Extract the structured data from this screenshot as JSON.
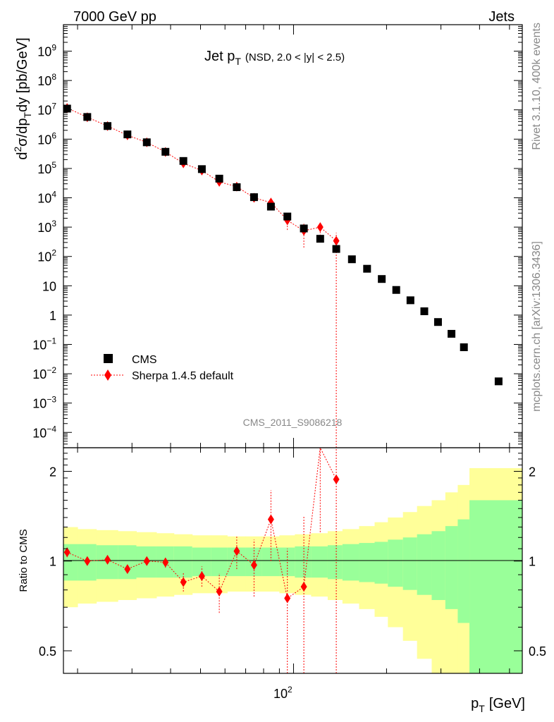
{
  "header": {
    "left": "7000 GeV pp",
    "right": "Jets"
  },
  "side_labels": {
    "rivet": "Rivet 3.1.10,  400k events",
    "mcplots": "mcplots.cern.ch [arXiv:1306.3436]"
  },
  "watermark": "CMS_2011_S9086218",
  "colors": {
    "data": "#000000",
    "mc": "#ff0000",
    "band_inner": "#99ff99",
    "band_outer": "#ffff99"
  },
  "chart_data": [
    {
      "type": "scatter",
      "title": "Jet p_T (NSD, 2.0 < |y| < 2.5)",
      "title_parts": {
        "main": "Jet p",
        "sub": "T",
        "paren": "(NSD, 2.0 < |y| < 2.5)"
      },
      "ylabel": "d²σ/dp_T dy [pb/GeV]",
      "xscale": "log",
      "yscale": "log",
      "xlim": [
        18,
        550
      ],
      "ylim": [
        3e-05,
        8000000000
      ],
      "ytick_labels": [
        {
          "v": 1000000000.0,
          "base": "10",
          "exp": "9"
        },
        {
          "v": 100000000.0,
          "base": "10",
          "exp": "8"
        },
        {
          "v": 10000000.0,
          "base": "10",
          "exp": "7"
        },
        {
          "v": 1000000.0,
          "base": "10",
          "exp": "6"
        },
        {
          "v": 100000.0,
          "base": "10",
          "exp": "5"
        },
        {
          "v": 10000.0,
          "base": "10",
          "exp": "4"
        },
        {
          "v": 1000.0,
          "base": "10",
          "exp": "3"
        },
        {
          "v": 100.0,
          "base": "10",
          "exp": "2"
        },
        {
          "v": 10,
          "base": "10",
          "exp": ""
        },
        {
          "v": 1,
          "base": "1",
          "exp": ""
        },
        {
          "v": 0.1,
          "base": "10",
          "exp": "−1"
        },
        {
          "v": 0.01,
          "base": "10",
          "exp": "−2"
        },
        {
          "v": 0.001,
          "base": "10",
          "exp": "−3"
        },
        {
          "v": 0.0001,
          "base": "10",
          "exp": "−4"
        }
      ],
      "legend_position": "lower-left",
      "series": [
        {
          "name": "CMS",
          "marker": "square",
          "x": [
            18.5,
            21.5,
            25,
            29,
            33.5,
            38.5,
            44,
            50.5,
            57.5,
            65.5,
            74.5,
            84.5,
            95.5,
            108,
            122,
            137.5,
            154.5,
            173,
            193,
            215,
            239,
            265,
            293.5,
            324.5,
            356,
            461
          ],
          "y": [
            11000000,
            5700000,
            2800000,
            1450000,
            780000,
            370000,
            180000,
            95000,
            45000,
            23000,
            10500,
            5000,
            2300,
            900,
            400,
            180,
            80,
            38,
            17,
            7.2,
            3.2,
            1.35,
            0.58,
            0.23,
            0.08,
            0.0055
          ]
        },
        {
          "name": "Sherpa 1.4.5 default",
          "marker": "diamond",
          "x": [
            18.5,
            21.5,
            25,
            29,
            33.5,
            38.5,
            44,
            50.5,
            57.5,
            65.5,
            74.5,
            84.5,
            95.5,
            108,
            122,
            137.5
          ],
          "y": [
            11500000,
            5600000,
            2800000,
            1350000,
            780000,
            365000,
            150000,
            85000,
            35000,
            24000,
            10000,
            6900,
            1700,
            750,
            1000,
            340
          ],
          "yerr_low": [
            500000,
            200000,
            100000,
            60000,
            30000,
            20000,
            20000,
            10000,
            6000,
            5000,
            2000,
            2500,
            900,
            550,
            500,
            340
          ],
          "yerr_high": [
            500000,
            200000,
            100000,
            60000,
            30000,
            20000,
            20000,
            10000,
            6000,
            5000,
            2000,
            2500,
            900,
            550,
            500,
            300
          ]
        }
      ]
    },
    {
      "type": "scatter",
      "title": "",
      "xlabel": "p_T [GeV]",
      "xlabel_parts": {
        "main": "p",
        "sub": "T",
        "unit": "[GeV]"
      },
      "ylabel": "Ratio to CMS",
      "xscale": "log",
      "yscale": "log",
      "xlim": [
        18,
        550
      ],
      "ylim": [
        0.42,
        2.4
      ],
      "ytick_labels": [
        {
          "v": 2,
          "label": "2"
        },
        {
          "v": 1,
          "label": "1"
        },
        {
          "v": 0.5,
          "label": "0.5"
        }
      ],
      "xtick_labels": [
        {
          "v": 100,
          "base": "10",
          "exp": "2"
        }
      ],
      "reference_line": 1,
      "bands": {
        "x_edges": [
          18,
          20,
          23,
          27,
          31,
          36,
          41,
          47,
          54,
          61,
          70,
          79,
          90,
          101,
          114,
          129,
          144,
          163,
          183,
          202,
          226,
          251,
          280,
          310,
          340,
          371,
          550
        ],
        "inner_half_width": [
          0.14,
          0.14,
          0.13,
          0.13,
          0.12,
          0.12,
          0.12,
          0.11,
          0.11,
          0.11,
          0.11,
          0.11,
          0.11,
          0.12,
          0.12,
          0.13,
          0.14,
          0.15,
          0.16,
          0.18,
          0.2,
          0.23,
          0.26,
          0.31,
          0.38,
          0.6
        ],
        "outer_half_width": [
          0.3,
          0.28,
          0.27,
          0.26,
          0.25,
          0.24,
          0.23,
          0.22,
          0.22,
          0.21,
          0.21,
          0.21,
          0.22,
          0.23,
          0.24,
          0.26,
          0.28,
          0.31,
          0.35,
          0.4,
          0.46,
          0.53,
          0.6,
          0.7,
          0.8,
          1.05
        ]
      },
      "series": [
        {
          "name": "Sherpa 1.4.5 default",
          "marker": "diamond",
          "x": [
            18.5,
            21.5,
            25,
            29,
            33.5,
            38.5,
            44,
            50.5,
            57.5,
            65.5,
            74.5,
            84.5,
            95.5,
            108,
            122,
            137.5
          ],
          "y": [
            1.07,
            1.0,
            1.01,
            0.94,
            1.0,
            0.99,
            0.85,
            0.89,
            0.79,
            1.08,
            0.97,
            1.38,
            0.75,
            0.82,
            2.5,
            1.88
          ],
          "yerr_low": [
            0.04,
            0.03,
            0.03,
            0.03,
            0.03,
            0.04,
            0.06,
            0.07,
            0.12,
            0.14,
            0.21,
            0.38,
            0.75,
            0.82,
            1.25,
            1.88
          ],
          "yerr_high": [
            0.04,
            0.03,
            0.03,
            0.03,
            0.03,
            0.04,
            0.06,
            0.07,
            0.12,
            0.14,
            0.21,
            0.35,
            0.35,
            0.6,
            1.25,
            1.0
          ]
        }
      ]
    }
  ]
}
